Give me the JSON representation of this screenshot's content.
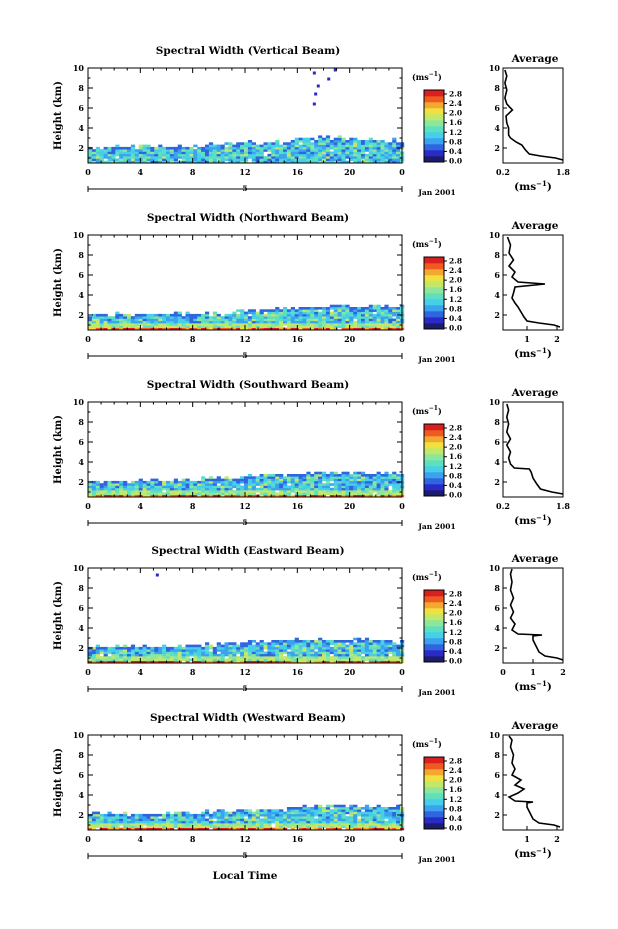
{
  "palette": [
    "#1c1c6e",
    "#2a2ac8",
    "#2f66e0",
    "#3aa2ee",
    "#45cfe8",
    "#5ee0c0",
    "#8ee69a",
    "#c2e86a",
    "#f0e040",
    "#f5a830",
    "#f05a20",
    "#d82020"
  ],
  "shared": {
    "ylabel": "Height (km)",
    "unit_label": "(ms",
    "unit_exp": "−1",
    "unit_close": ")",
    "date_label": "Jan 2001",
    "marker_label": "5",
    "avg_title": "Average",
    "avg_xlabel": "(ms",
    "avg_xlabel_exp": "−1",
    "avg_xlabel_close": ")",
    "xlabel": "Local Time"
  },
  "chart_data": [
    {
      "type": "heatmap",
      "title": "Spectral Width (Vertical Beam)",
      "x_ticks": [
        "0",
        "4",
        "8",
        "12",
        "16",
        "20",
        "0"
      ],
      "y_ticks": [
        "2",
        "4",
        "6",
        "8",
        "10"
      ],
      "x_range": [
        0,
        24
      ],
      "y_range": [
        0.5,
        10
      ],
      "colorbar_ticks": [
        "0.0",
        "0.4",
        "0.8",
        "1.2",
        "1.6",
        "2.0",
        "2.4",
        "2.8"
      ],
      "colorbar_range": [
        0,
        2.8
      ],
      "surface_band": false,
      "sparse_points": [
        [
          17.3,
          9.5
        ],
        [
          17.6,
          8.2
        ],
        [
          17.4,
          7.4
        ],
        [
          17.3,
          6.4
        ],
        [
          18.4,
          8.9
        ],
        [
          18.9,
          9.8
        ]
      ],
      "top_profile": [
        [
          0,
          2.2
        ],
        [
          6,
          2.3
        ],
        [
          10,
          2.5
        ],
        [
          14,
          2.8
        ],
        [
          18,
          3.2
        ],
        [
          24,
          2.9
        ]
      ],
      "average": {
        "x_ticks": [
          "0.2",
          "1.8"
        ],
        "x_range": [
          0.2,
          1.8
        ],
        "y_range": [
          0.5,
          10
        ],
        "y_ticks": [
          "2",
          "4",
          "6",
          "8",
          "10"
        ],
        "profile": [
          [
            1.8,
            0.8
          ],
          [
            1.6,
            1.0
          ],
          [
            1.2,
            1.2
          ],
          [
            0.9,
            1.4
          ],
          [
            0.8,
            1.8
          ],
          [
            0.7,
            2.3
          ],
          [
            0.55,
            2.6
          ],
          [
            0.4,
            3.0
          ],
          [
            0.35,
            3.3
          ],
          [
            0.35,
            4.0
          ],
          [
            0.3,
            4.5
          ],
          [
            0.28,
            5.2
          ],
          [
            0.45,
            5.8
          ],
          [
            0.3,
            6.4
          ],
          [
            0.25,
            7.0
          ],
          [
            0.3,
            7.8
          ],
          [
            0.25,
            8.5
          ],
          [
            0.3,
            9.2
          ],
          [
            0.25,
            9.8
          ]
        ]
      }
    },
    {
      "type": "heatmap",
      "title": "Spectral Width (Northward Beam)",
      "x_ticks": [
        "0",
        "4",
        "8",
        "12",
        "16",
        "20",
        "0"
      ],
      "y_ticks": [
        "2",
        "4",
        "6",
        "8",
        "10"
      ],
      "x_range": [
        0,
        24
      ],
      "y_range": [
        0.5,
        10
      ],
      "colorbar_ticks": [
        "0.0",
        "0.4",
        "0.8",
        "1.2",
        "1.6",
        "2.0",
        "2.4",
        "2.8"
      ],
      "colorbar_range": [
        0,
        2.8
      ],
      "surface_band": true,
      "sparse_points": [],
      "top_profile": [
        [
          0,
          2.2
        ],
        [
          6,
          2.2
        ],
        [
          10,
          2.4
        ],
        [
          14,
          2.7
        ],
        [
          18,
          3.0
        ],
        [
          24,
          3.0
        ]
      ],
      "average": {
        "x_ticks": [
          "1",
          "2"
        ],
        "x_range": [
          0.2,
          2.2
        ],
        "y_range": [
          0.5,
          10
        ],
        "y_ticks": [
          "2",
          "4",
          "6",
          "8",
          "10"
        ],
        "profile": [
          [
            2.1,
            0.8
          ],
          [
            1.9,
            1.0
          ],
          [
            1.4,
            1.2
          ],
          [
            1.0,
            1.4
          ],
          [
            0.9,
            1.8
          ],
          [
            0.8,
            2.3
          ],
          [
            0.7,
            2.8
          ],
          [
            0.6,
            3.2
          ],
          [
            0.5,
            3.7
          ],
          [
            0.55,
            4.2
          ],
          [
            0.6,
            4.8
          ],
          [
            1.6,
            5.1
          ],
          [
            0.7,
            5.3
          ],
          [
            0.5,
            5.8
          ],
          [
            0.6,
            6.3
          ],
          [
            0.4,
            6.9
          ],
          [
            0.55,
            7.5
          ],
          [
            0.4,
            8.2
          ],
          [
            0.45,
            9.0
          ],
          [
            0.35,
            9.8
          ]
        ]
      }
    },
    {
      "type": "heatmap",
      "title": "Spectral Width (Southward Beam)",
      "x_ticks": [
        "0",
        "4",
        "8",
        "12",
        "16",
        "20",
        "0"
      ],
      "y_ticks": [
        "2",
        "4",
        "6",
        "8",
        "10"
      ],
      "x_range": [
        0,
        24
      ],
      "y_range": [
        0.5,
        10
      ],
      "colorbar_ticks": [
        "0.0",
        "0.4",
        "0.8",
        "1.2",
        "1.6",
        "2.0",
        "2.4",
        "2.8"
      ],
      "colorbar_range": [
        0,
        2.8
      ],
      "surface_band": true,
      "sparse_points": [],
      "top_profile": [
        [
          0,
          2.2
        ],
        [
          6,
          2.3
        ],
        [
          10,
          2.5
        ],
        [
          14,
          2.8
        ],
        [
          18,
          3.1
        ],
        [
          24,
          2.9
        ]
      ],
      "average": {
        "x_ticks": [
          "0.2",
          "1.8"
        ],
        "x_range": [
          0.2,
          1.8
        ],
        "y_range": [
          0.5,
          10
        ],
        "y_ticks": [
          "2",
          "4",
          "6",
          "8",
          "10"
        ],
        "profile": [
          [
            1.8,
            0.8
          ],
          [
            1.5,
            1.0
          ],
          [
            1.2,
            1.3
          ],
          [
            1.1,
            1.8
          ],
          [
            1.0,
            2.4
          ],
          [
            0.95,
            3.0
          ],
          [
            0.9,
            3.3
          ],
          [
            0.5,
            3.4
          ],
          [
            0.4,
            3.8
          ],
          [
            0.35,
            4.4
          ],
          [
            0.4,
            5.0
          ],
          [
            0.3,
            5.7
          ],
          [
            0.4,
            6.3
          ],
          [
            0.3,
            7.0
          ],
          [
            0.35,
            7.8
          ],
          [
            0.3,
            8.5
          ],
          [
            0.35,
            9.2
          ],
          [
            0.3,
            9.8
          ]
        ]
      }
    },
    {
      "type": "heatmap",
      "title": "Spectral Width (Eastward Beam)",
      "x_ticks": [
        "0",
        "4",
        "8",
        "12",
        "16",
        "20",
        "0"
      ],
      "y_ticks": [
        "2",
        "4",
        "6",
        "8",
        "10"
      ],
      "x_range": [
        0,
        24
      ],
      "y_range": [
        0.5,
        10
      ],
      "colorbar_ticks": [
        "0.0",
        "0.4",
        "0.8",
        "1.2",
        "1.6",
        "2.0",
        "2.4",
        "2.8"
      ],
      "colorbar_range": [
        0,
        2.8
      ],
      "surface_band": true,
      "sparse_points": [
        [
          5.3,
          9.3
        ]
      ],
      "top_profile": [
        [
          0,
          2.3
        ],
        [
          6,
          2.3
        ],
        [
          10,
          2.5
        ],
        [
          14,
          2.9
        ],
        [
          18,
          3.0
        ],
        [
          24,
          2.9
        ]
      ],
      "average": {
        "x_ticks": [
          "0",
          "1",
          "2"
        ],
        "x_range": [
          0,
          2
        ],
        "y_range": [
          0.5,
          10
        ],
        "y_ticks": [
          "2",
          "4",
          "6",
          "8",
          "10"
        ],
        "profile": [
          [
            2.0,
            0.8
          ],
          [
            1.8,
            1.0
          ],
          [
            1.4,
            1.2
          ],
          [
            1.2,
            1.6
          ],
          [
            1.1,
            2.2
          ],
          [
            1.0,
            2.8
          ],
          [
            1.0,
            3.2
          ],
          [
            1.3,
            3.3
          ],
          [
            0.5,
            3.4
          ],
          [
            0.3,
            3.8
          ],
          [
            0.4,
            4.4
          ],
          [
            0.25,
            5.0
          ],
          [
            0.35,
            5.6
          ],
          [
            0.25,
            6.3
          ],
          [
            0.35,
            7.0
          ],
          [
            0.25,
            7.8
          ],
          [
            0.3,
            8.6
          ],
          [
            0.25,
            9.4
          ],
          [
            0.3,
            9.9
          ]
        ]
      }
    },
    {
      "type": "heatmap",
      "title": "Spectral Width (Westward Beam)",
      "x_ticks": [
        "0",
        "4",
        "8",
        "12",
        "16",
        "20",
        "0"
      ],
      "y_ticks": [
        "2",
        "4",
        "6",
        "8",
        "10"
      ],
      "x_range": [
        0,
        24
      ],
      "y_range": [
        0.5,
        10
      ],
      "colorbar_ticks": [
        "0.0",
        "0.4",
        "0.8",
        "1.2",
        "1.6",
        "2.0",
        "2.4",
        "2.8"
      ],
      "colorbar_range": [
        0,
        2.8
      ],
      "surface_band": true,
      "sparse_points": [],
      "top_profile": [
        [
          0,
          2.2
        ],
        [
          6,
          2.3
        ],
        [
          10,
          2.5
        ],
        [
          14,
          2.8
        ],
        [
          18,
          3.1
        ],
        [
          24,
          2.9
        ]
      ],
      "average": {
        "x_ticks": [
          "1",
          "2"
        ],
        "x_range": [
          0.2,
          2.2
        ],
        "y_range": [
          0.5,
          10
        ],
        "y_ticks": [
          "2",
          "4",
          "6",
          "8",
          "10"
        ],
        "profile": [
          [
            2.1,
            0.8
          ],
          [
            1.9,
            1.0
          ],
          [
            1.4,
            1.2
          ],
          [
            1.2,
            1.6
          ],
          [
            1.1,
            2.2
          ],
          [
            1.0,
            2.8
          ],
          [
            1.0,
            3.2
          ],
          [
            1.2,
            3.3
          ],
          [
            0.6,
            3.4
          ],
          [
            0.4,
            3.8
          ],
          [
            0.7,
            4.2
          ],
          [
            0.9,
            4.6
          ],
          [
            0.6,
            5.0
          ],
          [
            0.8,
            5.5
          ],
          [
            0.5,
            6.0
          ],
          [
            0.6,
            6.6
          ],
          [
            0.5,
            7.2
          ],
          [
            0.55,
            8.0
          ],
          [
            0.45,
            8.8
          ],
          [
            0.5,
            9.5
          ],
          [
            0.4,
            9.9
          ]
        ]
      }
    }
  ]
}
